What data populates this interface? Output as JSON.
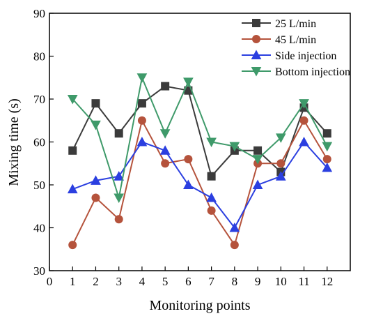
{
  "chart_data": {
    "type": "line",
    "xlabel": "Monitoring points",
    "ylabel": "Mixing time (s)",
    "xlim": [
      0,
      13
    ],
    "ylim": [
      30,
      90
    ],
    "x_ticks": [
      0,
      1,
      2,
      3,
      4,
      5,
      6,
      7,
      8,
      9,
      10,
      11,
      12
    ],
    "y_ticks": [
      30,
      40,
      50,
      60,
      70,
      80,
      90
    ],
    "legend_position": "top-right",
    "grid": false,
    "x": [
      1,
      2,
      3,
      4,
      5,
      6,
      7,
      8,
      9,
      10,
      11,
      12
    ],
    "series": [
      {
        "name": "25 L/min",
        "color": "#3b3b3b",
        "marker": "square",
        "values": [
          58,
          69,
          62,
          69,
          73,
          72,
          52,
          58,
          58,
          53,
          68,
          62
        ]
      },
      {
        "name": "45 L/min",
        "color": "#b5533c",
        "marker": "circle",
        "values": [
          36,
          47,
          42,
          65,
          55,
          56,
          44,
          36,
          55,
          55,
          65,
          56
        ]
      },
      {
        "name": "Side injection",
        "color": "#2b3fe0",
        "marker": "triangle-up",
        "values": [
          49,
          51,
          52,
          60,
          58,
          50,
          47,
          40,
          50,
          52,
          60,
          54
        ]
      },
      {
        "name": "Bottom injection",
        "color": "#3f9a6a",
        "marker": "triangle-down",
        "values": [
          70,
          64,
          47,
          75,
          62,
          74,
          60,
          59,
          56,
          61,
          69,
          59
        ]
      }
    ]
  }
}
